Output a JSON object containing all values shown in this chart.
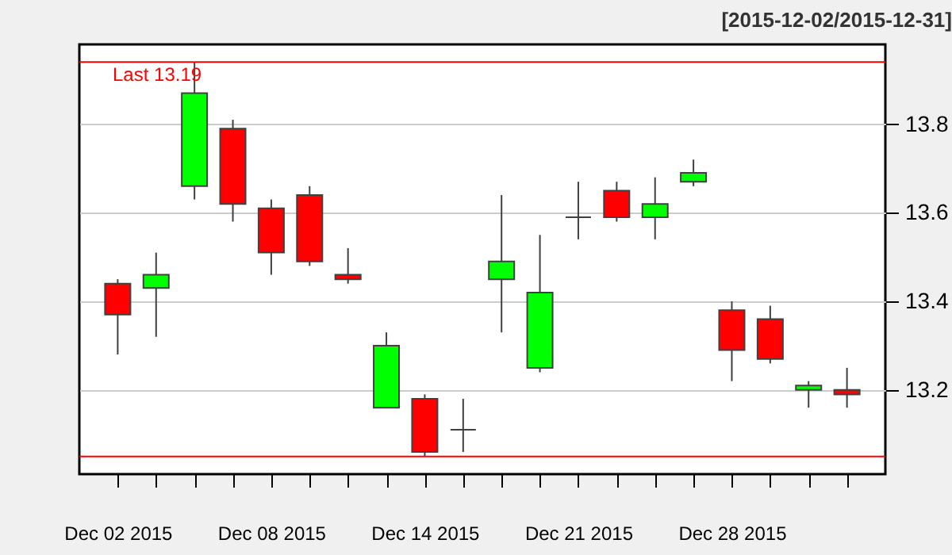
{
  "chart_data": {
    "type": "candlestick",
    "subtitle": "[2015-12-02/2015-12-31]",
    "categories": [
      "Dec 02 2015",
      null,
      null,
      null,
      "Dec 08 2015",
      null,
      null,
      null,
      "Dec 14 2015",
      null,
      null,
      null,
      "Dec 21 2015",
      null,
      null,
      null,
      "Dec 28 2015",
      null,
      null,
      null
    ],
    "ohlc": [
      [
        13.44,
        13.45,
        13.28,
        13.37
      ],
      [
        13.43,
        13.51,
        13.32,
        13.46
      ],
      [
        13.66,
        13.94,
        13.63,
        13.87
      ],
      [
        13.79,
        13.81,
        13.58,
        13.62
      ],
      [
        13.61,
        13.63,
        13.46,
        13.51
      ],
      [
        13.64,
        13.66,
        13.48,
        13.49
      ],
      [
        13.46,
        13.52,
        13.44,
        13.45
      ],
      [
        13.16,
        13.33,
        13.16,
        13.3
      ],
      [
        13.18,
        13.19,
        13.05,
        13.06
      ],
      [
        13.11,
        13.18,
        13.06,
        13.11
      ],
      [
        13.45,
        13.64,
        13.33,
        13.49
      ],
      [
        13.25,
        13.55,
        13.24,
        13.42
      ],
      [
        13.59,
        13.67,
        13.54,
        13.59
      ],
      [
        13.65,
        13.67,
        13.58,
        13.59
      ],
      [
        13.59,
        13.68,
        13.54,
        13.62
      ],
      [
        13.67,
        13.72,
        13.66,
        13.69
      ],
      [
        13.38,
        13.4,
        13.22,
        13.29
      ],
      [
        13.36,
        13.39,
        13.26,
        13.27
      ],
      [
        13.2,
        13.22,
        13.16,
        13.21
      ],
      [
        13.2,
        13.25,
        13.16,
        13.19
      ]
    ],
    "colors": [
      "#ff0000",
      "#00ff00",
      "#00ff00",
      "#ff0000",
      "#ff0000",
      "#ff0000",
      "#ff0000",
      "#00ff00",
      "#ff0000",
      "#404040",
      "#00ff00",
      "#00ff00",
      "#404040",
      "#ff0000",
      "#00ff00",
      "#00ff00",
      "#ff0000",
      "#ff0000",
      "#00ff00",
      "#ff0000"
    ],
    "ylim": [
      13.01,
      13.98
    ],
    "yticks": [
      13.2,
      13.4,
      13.6,
      13.8
    ],
    "ref_lines": [
      {
        "axis": "y",
        "value": 13.94,
        "color": "#ff0000"
      },
      {
        "axis": "y",
        "value": 13.05,
        "color": "#ff0000"
      }
    ],
    "annotations": [
      "Last 13.19"
    ],
    "grid": "y"
  }
}
